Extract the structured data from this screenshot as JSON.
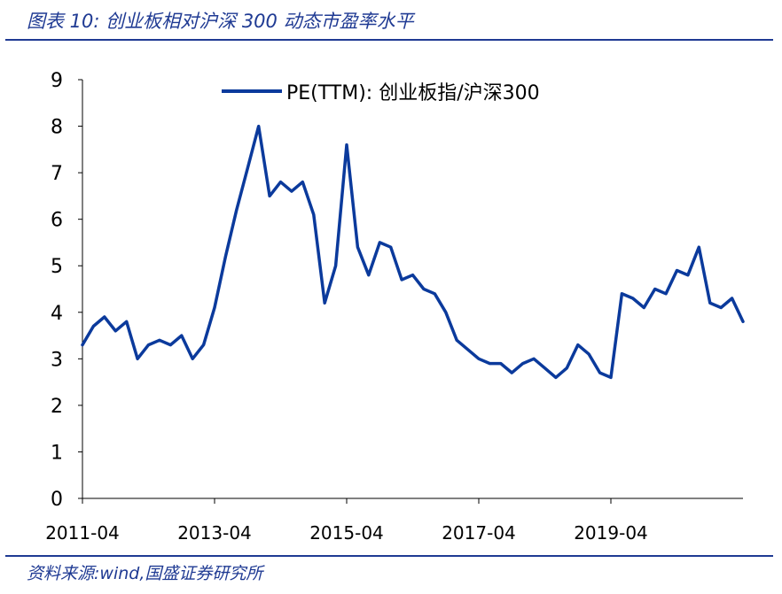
{
  "header": {
    "title": "图表 10:  创业板相对沪深 300 动态市盈率水平"
  },
  "footer": {
    "source": "资料来源:wind,国盛证券研究所"
  },
  "colors": {
    "line": "#0b3a9c",
    "accent": "#1f3a93"
  },
  "chart_data": {
    "type": "line",
    "title": "",
    "xlabel": "",
    "ylabel": "",
    "ylim": [
      0,
      9
    ],
    "yticks": [
      "0",
      "1",
      "2",
      "3",
      "4",
      "5",
      "6",
      "7",
      "8",
      "9"
    ],
    "xticks": [
      "2011-04",
      "2013-04",
      "2015-04",
      "2017-04",
      "2019-04"
    ],
    "xrange": [
      "2011-04",
      "2021-04"
    ],
    "legend_position": "top",
    "grid": false,
    "series": [
      {
        "name": "PE(TTM):  创业板指/沪深300",
        "x": [
          "2011-04",
          "2011-06",
          "2011-08",
          "2011-10",
          "2011-12",
          "2012-02",
          "2012-04",
          "2012-06",
          "2012-08",
          "2012-10",
          "2012-12",
          "2013-02",
          "2013-04",
          "2013-06",
          "2013-08",
          "2013-10",
          "2013-12",
          "2014-02",
          "2014-04",
          "2014-06",
          "2014-08",
          "2014-10",
          "2014-12",
          "2015-02",
          "2015-04",
          "2015-06",
          "2015-08",
          "2015-10",
          "2015-12",
          "2016-02",
          "2016-04",
          "2016-06",
          "2016-08",
          "2016-10",
          "2016-12",
          "2017-02",
          "2017-04",
          "2017-06",
          "2017-08",
          "2017-10",
          "2017-12",
          "2018-02",
          "2018-04",
          "2018-06",
          "2018-08",
          "2018-10",
          "2018-12",
          "2019-02",
          "2019-04",
          "2019-06",
          "2019-08",
          "2019-10",
          "2019-12",
          "2020-02",
          "2020-04",
          "2020-06",
          "2020-08",
          "2020-10",
          "2020-12",
          "2021-02",
          "2021-04"
        ],
        "values": [
          3.3,
          3.7,
          3.9,
          3.6,
          3.8,
          3.0,
          3.3,
          3.4,
          3.3,
          3.5,
          3.0,
          3.3,
          4.1,
          5.2,
          6.2,
          7.1,
          8.0,
          6.5,
          6.8,
          6.6,
          6.8,
          6.1,
          4.2,
          5.0,
          7.6,
          5.4,
          4.8,
          5.5,
          5.4,
          4.7,
          4.8,
          4.5,
          4.4,
          4.0,
          3.4,
          3.2,
          3.0,
          2.9,
          2.9,
          2.7,
          2.9,
          3.0,
          2.8,
          2.6,
          2.8,
          3.3,
          3.1,
          2.7,
          2.6,
          4.4,
          4.3,
          4.1,
          4.5,
          4.4,
          4.9,
          4.8,
          5.4,
          4.2,
          4.1,
          4.3,
          3.8
        ]
      }
    ]
  }
}
